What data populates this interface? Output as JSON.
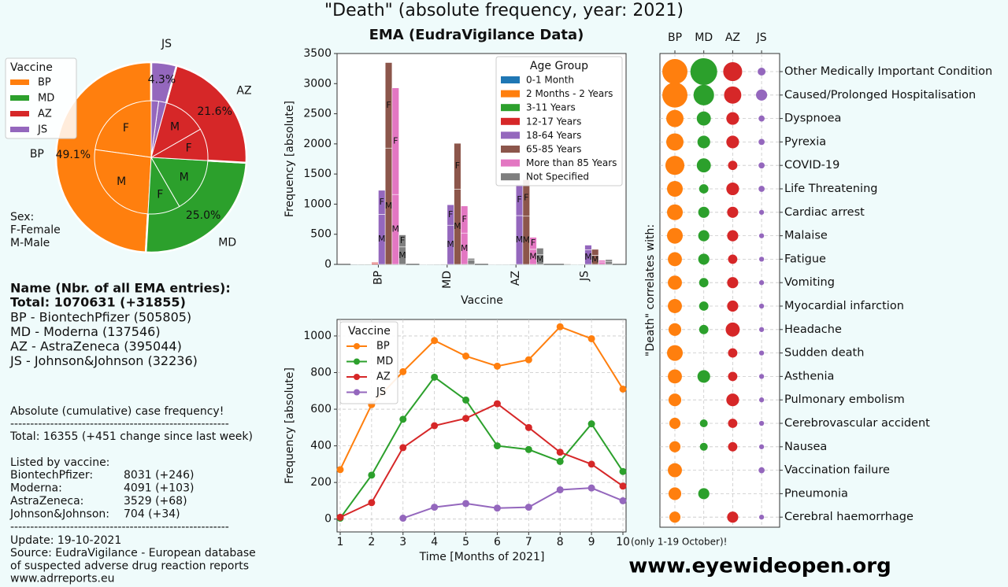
{
  "title": "\"Death\" (absolute frequency, year: 2021)",
  "chart_data": [
    {
      "type": "pie",
      "legend_title": "Vaccine",
      "legend": "upper left",
      "categories": [
        "BP",
        "MD",
        "AZ",
        "JS"
      ],
      "values": [
        49.1,
        25.0,
        21.6,
        4.3
      ],
      "value_labels": [
        "49.1%",
        "25.0%",
        "21.6%",
        "4.3%"
      ],
      "colors": [
        "#ff7f0e",
        "#2ca02c",
        "#d62728",
        "#9467bd"
      ],
      "inner": {
        "labels": [
          "F",
          "M"
        ],
        "values": [
          [
            22.8,
            26.3
          ],
          [
            9.2,
            15.8
          ],
          [
            9.2,
            12.4
          ],
          [
            2.2,
            2.1
          ]
        ]
      },
      "note": [
        "Sex:",
        "F-Female",
        "M-Male"
      ]
    },
    {
      "type": "bar",
      "title": "EMA (EudraVigilance Data)",
      "xlabel": "Vaccine",
      "ylabel": "Frequency [absolute]",
      "categories": [
        "BP",
        "MD",
        "AZ",
        "JS"
      ],
      "ylim": [
        0,
        3500
      ],
      "yticks": [
        0,
        500,
        1000,
        1500,
        2000,
        2500,
        3000,
        3500
      ],
      "legend_title": "Age Group",
      "legend": "upper right",
      "stack_labels": [
        "M",
        "F"
      ],
      "series": [
        {
          "name": "0-1 Month",
          "color": "#1f77b4",
          "values": [
            [
              4,
              4
            ],
            [
              1,
              1
            ],
            [
              1,
              1
            ],
            [
              0,
              0
            ]
          ]
        },
        {
          "name": "2 Months - 2 Years",
          "color": "#ff7f0e",
          "values": [
            [
              6,
              6
            ],
            [
              2,
              1
            ],
            [
              2,
              1
            ],
            [
              1,
              0
            ]
          ]
        },
        {
          "name": "3-11 Years",
          "color": "#2ca02c",
          "values": [
            [
              5,
              5
            ],
            [
              3,
              2
            ],
            [
              2,
              2
            ],
            [
              1,
              1
            ]
          ]
        },
        {
          "name": "12-17 Years",
          "color": "#d62728",
          "values": [
            [
              20,
              15
            ],
            [
              5,
              3
            ],
            [
              4,
              2
            ],
            [
              2,
              1
            ]
          ]
        },
        {
          "name": "18-64 Years",
          "color": "#9467bd",
          "values": [
            [
              830,
              400
            ],
            [
              650,
              340
            ],
            [
              810,
              520
            ],
            [
              240,
              80
            ]
          ]
        },
        {
          "name": "65-85 Years",
          "color": "#8c564b",
          "values": [
            [
              1930,
              1420
            ],
            [
              1250,
              760
            ],
            [
              800,
              610
            ],
            [
              150,
              100
            ]
          ]
        },
        {
          "name": "More than 85 Years",
          "color": "#e377c2",
          "values": [
            [
              1160,
              1770
            ],
            [
              520,
              450
            ],
            [
              250,
              200
            ],
            [
              40,
              30
            ]
          ]
        },
        {
          "name": "Not Specified",
          "color": "#7f7f7f",
          "values": [
            [
              290,
              200
            ],
            [
              70,
              30
            ],
            [
              160,
              110
            ],
            [
              50,
              30
            ]
          ]
        }
      ]
    },
    {
      "type": "line",
      "xlabel": "Time [Months of 2021]",
      "ylabel": "Frequency [absolute]",
      "x": [
        1,
        2,
        3,
        4,
        5,
        6,
        7,
        8,
        9,
        10
      ],
      "xlim": [
        0.9,
        10.1
      ],
      "xticks": [
        1,
        2,
        3,
        4,
        5,
        6,
        7,
        8,
        9,
        10
      ],
      "ylim": [
        -70,
        1090
      ],
      "yticks": [
        0,
        200,
        400,
        600,
        800,
        1000
      ],
      "grid": true,
      "legend_title": "Vaccine",
      "legend": "upper left",
      "annotation": "(only 1-19 October)!",
      "series": [
        {
          "name": "BP",
          "color": "#ff7f0e",
          "values": [
            270,
            625,
            805,
            975,
            890,
            835,
            870,
            1050,
            985,
            710
          ]
        },
        {
          "name": "MD",
          "color": "#2ca02c",
          "values": [
            5,
            240,
            545,
            775,
            650,
            400,
            380,
            315,
            520,
            260
          ]
        },
        {
          "name": "AZ",
          "color": "#d62728",
          "values": [
            10,
            90,
            390,
            510,
            550,
            630,
            500,
            365,
            300,
            180
          ]
        },
        {
          "name": "JS",
          "color": "#9467bd",
          "values": [
            null,
            null,
            5,
            65,
            85,
            60,
            65,
            160,
            170,
            100
          ]
        }
      ]
    },
    {
      "type": "bubble",
      "ylabel": "\"Death\" correlates with:",
      "grid": true,
      "categories": [
        "Other Medically Important Condition",
        "Caused/Prolonged Hospitalisation",
        "Dyspnoea",
        "Pyrexia",
        "COVID-19",
        "Life Threatening",
        "Cardiac arrest",
        "Malaise",
        "Fatigue",
        "Vomiting",
        "Myocardial infarction",
        "Headache",
        "Sudden death",
        "Asthenia",
        "Pulmonary embolism",
        "Cerebrovascular accident",
        "Nausea",
        "Vaccination failure",
        "Pneumonia",
        "Cerebral haemorrhage"
      ],
      "series": [
        {
          "name": "BP",
          "color": "#ff7f0e",
          "values": [
            1020,
            1020,
            480,
            480,
            580,
            400,
            400,
            400,
            320,
            320,
            320,
            260,
            400,
            320,
            260,
            200,
            200,
            320,
            260,
            200
          ]
        },
        {
          "name": "MD",
          "color": "#2ca02c",
          "values": [
            1160,
            680,
            320,
            260,
            320,
            140,
            200,
            200,
            200,
            140,
            140,
            140,
            null,
            260,
            null,
            100,
            100,
            null,
            200,
            null
          ]
        },
        {
          "name": "AZ",
          "color": "#d62728",
          "values": [
            580,
            480,
            260,
            260,
            140,
            260,
            200,
            200,
            140,
            200,
            200,
            320,
            140,
            140,
            260,
            140,
            140,
            null,
            null,
            200
          ]
        },
        {
          "name": "JS",
          "color": "#9467bd",
          "values": [
            100,
            200,
            60,
            60,
            60,
            60,
            40,
            40,
            40,
            40,
            40,
            40,
            40,
            40,
            40,
            40,
            40,
            60,
            null,
            40
          ]
        }
      ]
    }
  ],
  "info": {
    "name_header": "Name  (Nbr. of all EMA entries):",
    "total": "Total: 1070631 (+31855)",
    "names": [
      "BP - BiontechPfizer (505805)",
      "MD - Moderna (137546)",
      "AZ - AstraZeneca (395044)",
      "JS - Johnson&Johnson (32236)"
    ],
    "case_title": "Absolute (cumulative) case frequency!",
    "separator": "-------------------------------------------------------",
    "total_cases": "Total: 16355 (+451 change since last week)",
    "listed_title": "Listed by vaccine:",
    "listed": [
      [
        "BiontechPfizer:",
        "8031 (+246)"
      ],
      [
        "Moderna:",
        "4091 (+103)"
      ],
      [
        "AstraZeneca:",
        "3529 (+68)"
      ],
      [
        "Johnson&Johnson:",
        "704 (+34)"
      ]
    ],
    "update": "Update: 19-10-2021",
    "source": [
      "Source: EudraVigilance - European database",
      "of suspected adverse drug reaction reports",
      "www.adrreports.eu"
    ]
  },
  "footer": "www.eyewideopen.org"
}
